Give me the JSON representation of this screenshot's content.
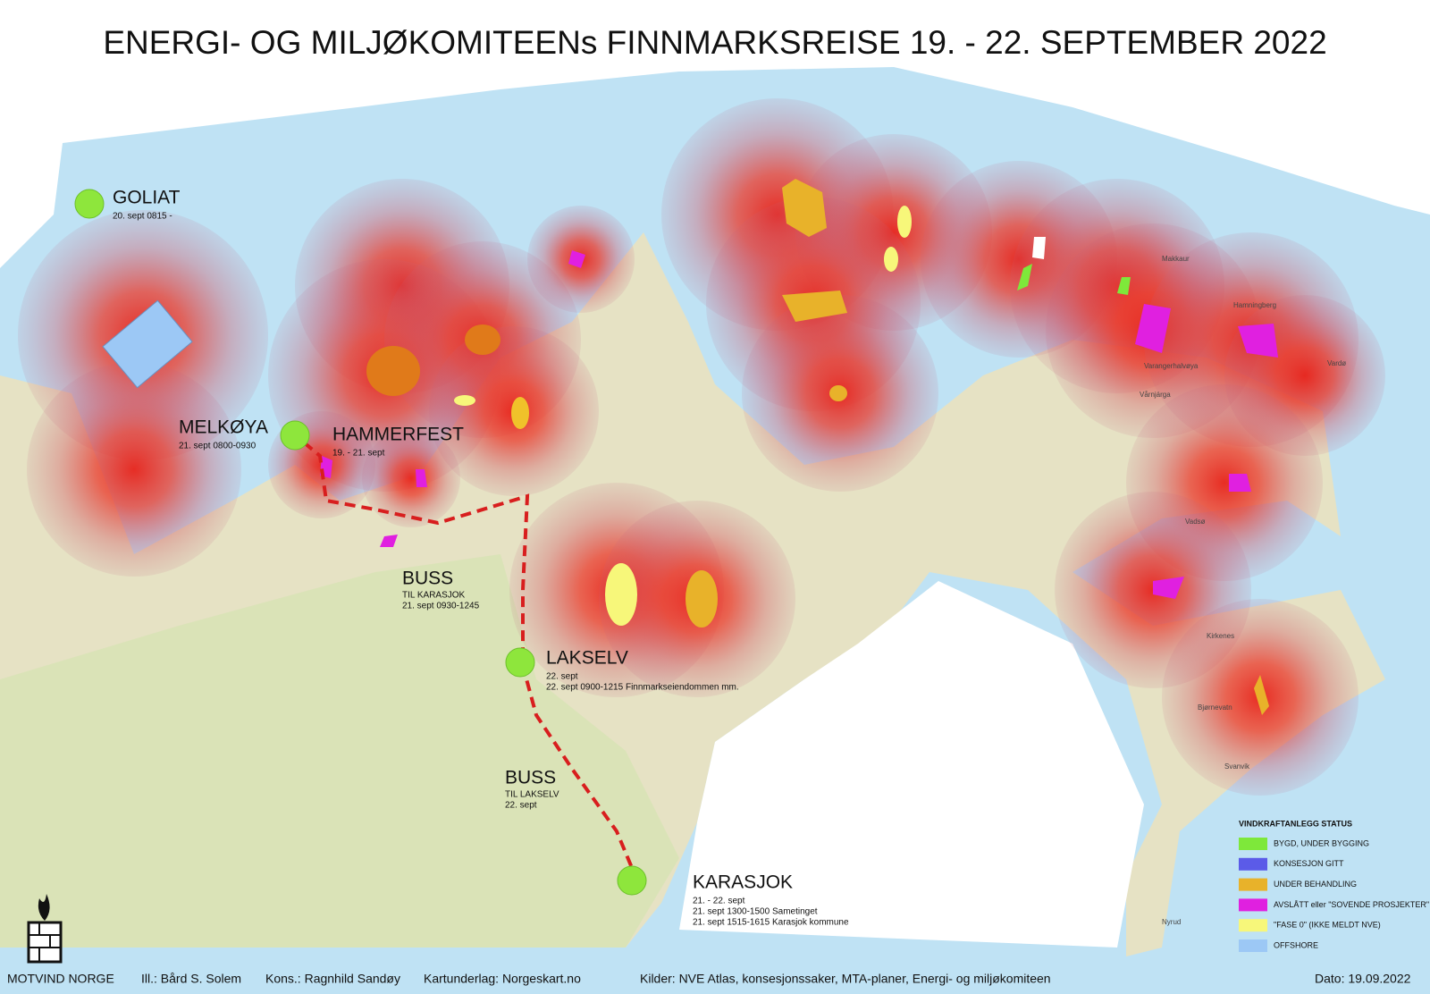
{
  "header": {
    "title": "ENERGI- OG MILJØKOMITEENs FINNMARKSREISE 19. - 22. SEPTEMBER 2022"
  },
  "stops": [
    {
      "name": "GOLIAT",
      "details": [
        "20. sept 0815 -"
      ]
    },
    {
      "name": "MELKØYA",
      "details": [
        "21. sept 0800-0930"
      ]
    },
    {
      "name": "HAMMERFEST",
      "details": [
        "19. - 21. sept"
      ]
    },
    {
      "name": "LAKSELV",
      "details": [
        "22. sept",
        "22. sept 0900-1215 Finnmarkseiendommen mm."
      ]
    },
    {
      "name": "KARASJOK",
      "details": [
        "21. - 22. sept",
        "21. sept 1300-1500 Sametinget",
        "21. sept 1515-1615 Karasjok kommune"
      ]
    }
  ],
  "bus": [
    {
      "label": "BUSS",
      "destination": "TIL KARASJOK",
      "time": "21. sept 0930-1245"
    },
    {
      "label": "BUSS",
      "destination": "TIL LAKSELV",
      "time": "22. sept"
    }
  ],
  "place_labels": [
    "Makkaur",
    "Hamningberg",
    "Varangerhalvøya",
    "Vårnjárga",
    "Vardø",
    "Vadsø",
    "Kirkenes",
    "Bjørnevatn",
    "Svanvik",
    "Nyrud"
  ],
  "legend": {
    "title": "VINDKRAFTANLEGG STATUS",
    "items": [
      {
        "label": "BYGD, UNDER BYGGING",
        "color": "#7ee83a"
      },
      {
        "label": "KONSESJON GITT",
        "color": "#5b5be8"
      },
      {
        "label": "UNDER BEHANDLING",
        "color": "#e8b22a"
      },
      {
        "label": "AVSLÅTT eller \"SOVENDE PROSJEKTER\"",
        "color": "#e020e0"
      },
      {
        "label": "\"FASE 0\" (IKKE MELDT NVE)",
        "color": "#f7f77a"
      },
      {
        "label": "OFFSHORE",
        "color": "#9cc8f5"
      }
    ]
  },
  "footer": {
    "organization": "MOTVIND NORGE",
    "illustration": "Ill.: Bård S. Solem",
    "consultant": "Kons.: Ragnhild Sandøy",
    "map_base": "Kartunderlag: Norgeskart.no",
    "sources": "Kilder: NVE Atlas, konsesjonssaker, MTA-planer, Energi- og miljøkomiteen",
    "date": "Dato:  19.09.2022"
  }
}
